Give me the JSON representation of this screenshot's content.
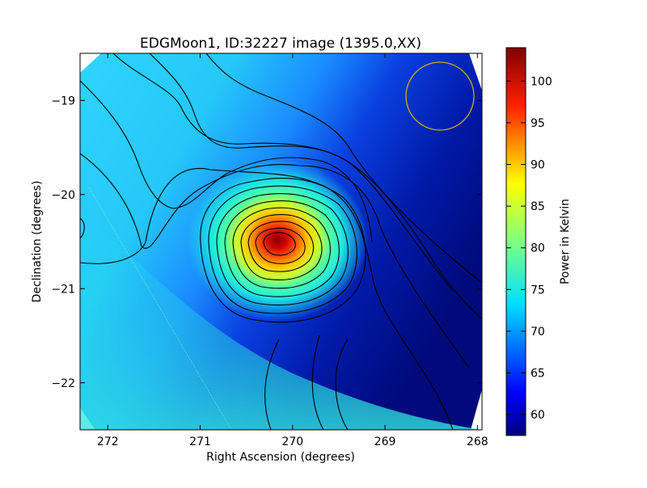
{
  "chart_data": {
    "type": "heatmap",
    "title": "EDGMoon1, ID:32227 image (1395.0,XX)",
    "xlabel": "Right Ascension (degrees)",
    "ylabel": "Declination (degrees)",
    "xlim": [
      272.3,
      267.95
    ],
    "ylim": [
      -22.5,
      -18.5
    ],
    "x_ticks": [
      {
        "value": 272,
        "label": "272"
      },
      {
        "value": 271,
        "label": "271"
      },
      {
        "value": 270,
        "label": "270"
      },
      {
        "value": 269,
        "label": "269"
      },
      {
        "value": 268,
        "label": "268"
      }
    ],
    "y_ticks": [
      {
        "value": -19,
        "label": "−19"
      },
      {
        "value": -20,
        "label": "−20"
      },
      {
        "value": -21,
        "label": "−21"
      },
      {
        "value": -22,
        "label": "−22"
      }
    ],
    "peak": {
      "ra": 270.05,
      "dec": -20.5,
      "value": 102
    },
    "colormap": "jet",
    "colorbar": {
      "label": "Power in Kelvin",
      "range": [
        57.5,
        104
      ],
      "ticks": [
        {
          "value": 60,
          "label": "60"
        },
        {
          "value": 65,
          "label": "65"
        },
        {
          "value": 70,
          "label": "70"
        },
        {
          "value": 75,
          "label": "75"
        },
        {
          "value": 80,
          "label": "80"
        },
        {
          "value": 85,
          "label": "85"
        },
        {
          "value": 90,
          "label": "90"
        },
        {
          "value": 95,
          "label": "95"
        },
        {
          "value": 100,
          "label": "100"
        }
      ]
    },
    "beam_circle_color": "#c8b400",
    "contour_color": "#000000"
  }
}
